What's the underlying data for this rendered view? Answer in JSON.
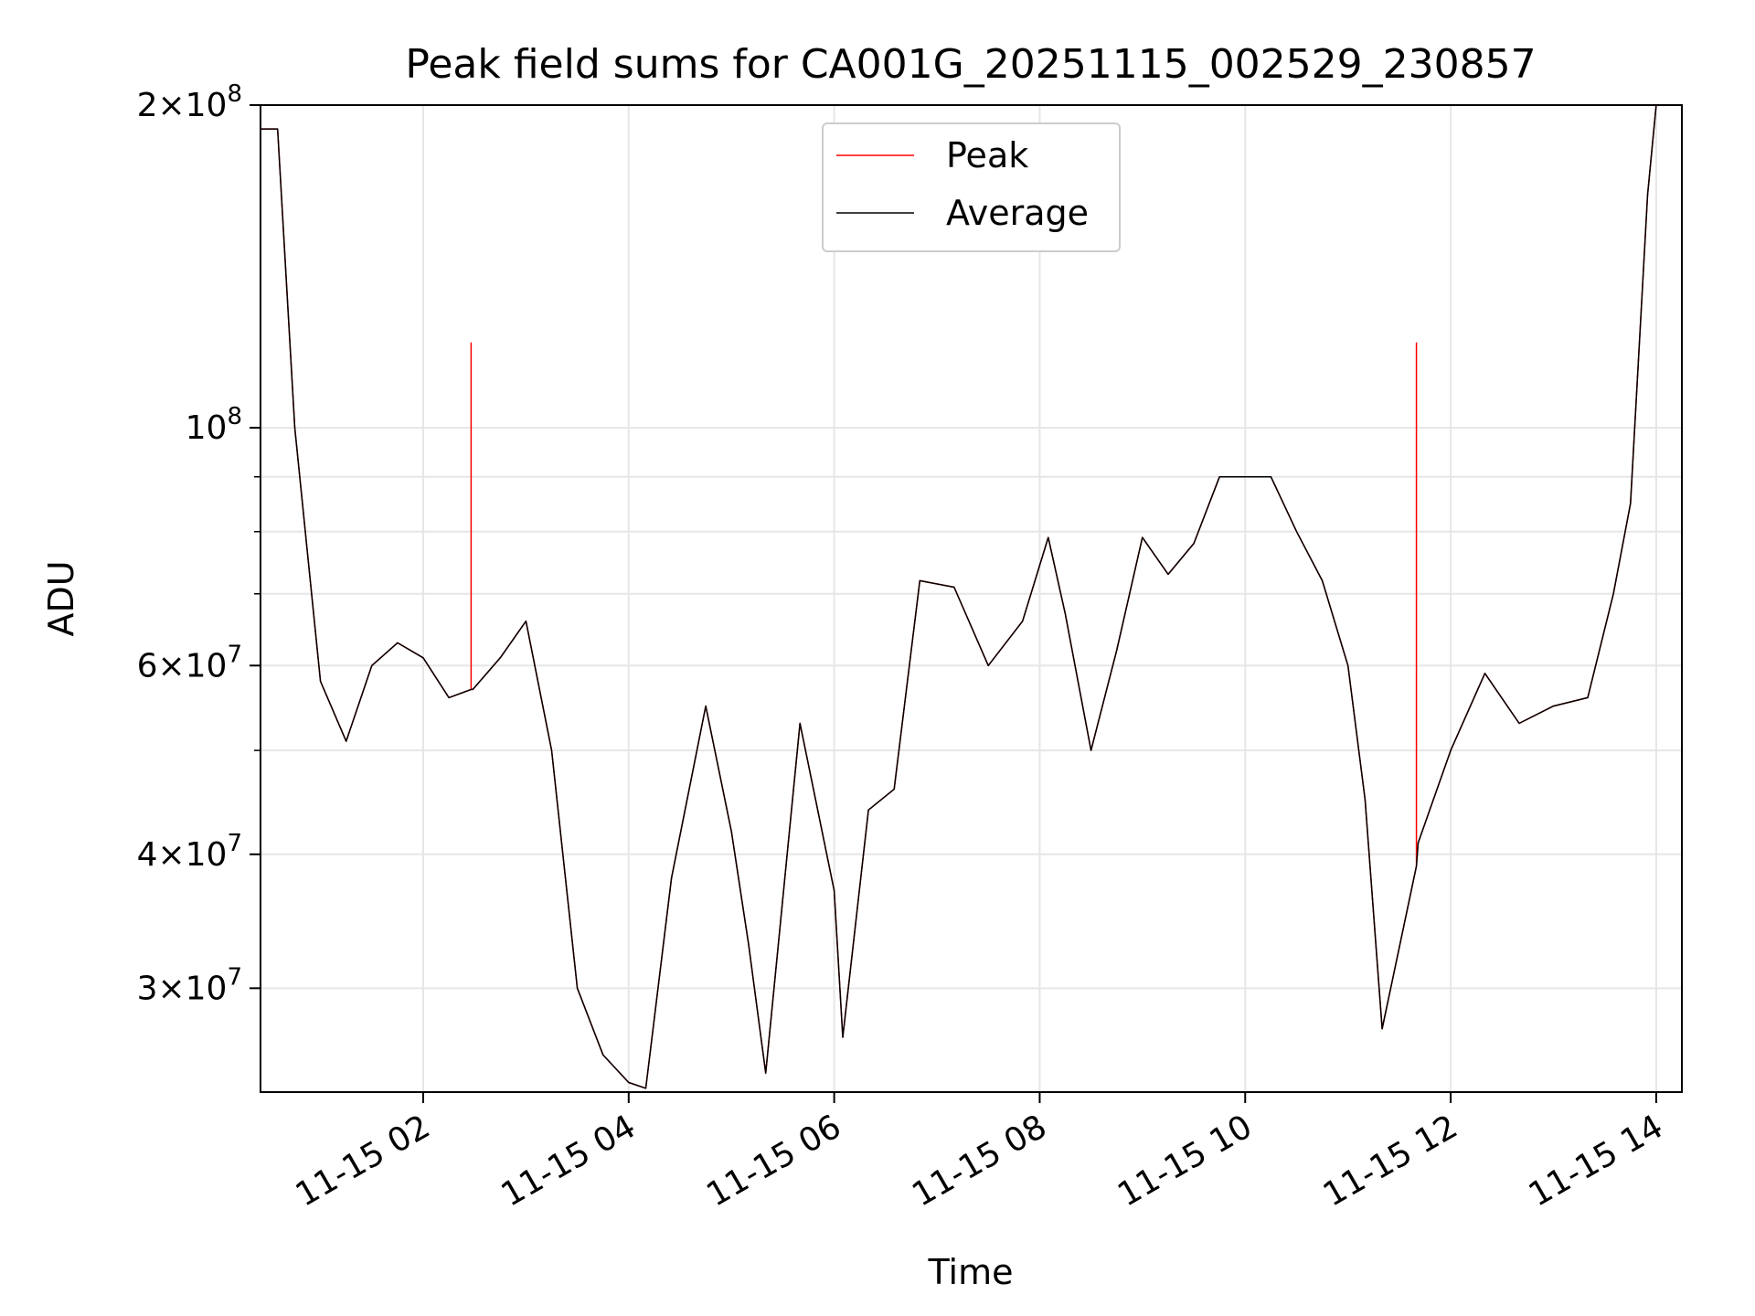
{
  "chart_data": {
    "type": "line",
    "title": "Peak field sums for CA001G_20251115_002529_230857",
    "xlabel": "Time",
    "ylabel": "ADU",
    "yscale": "log",
    "xlim": [
      "2025-11-15T00:25",
      "2025-11-15T14:15"
    ],
    "ylim": [
      24000000,
      200000000
    ],
    "grid": true,
    "legend_position": "upper center",
    "x_ticks": [
      {
        "t": "2025-11-15T02:00",
        "label": "11-15 02"
      },
      {
        "t": "2025-11-15T04:00",
        "label": "11-15 04"
      },
      {
        "t": "2025-11-15T06:00",
        "label": "11-15 06"
      },
      {
        "t": "2025-11-15T08:00",
        "label": "11-15 08"
      },
      {
        "t": "2025-11-15T10:00",
        "label": "11-15 10"
      },
      {
        "t": "2025-11-15T12:00",
        "label": "11-15 12"
      },
      {
        "t": "2025-11-15T14:00",
        "label": "11-15 14"
      }
    ],
    "y_ticks": [
      {
        "value": 30000000,
        "mantissa": "3",
        "exp": "7"
      },
      {
        "value": 40000000,
        "mantissa": "4",
        "exp": "7"
      },
      {
        "value": 60000000,
        "mantissa": "6",
        "exp": "7"
      },
      {
        "value": 100000000,
        "mantissa": "",
        "exp": "8"
      },
      {
        "value": 200000000,
        "mantissa": "2",
        "exp": "8"
      }
    ],
    "y_minor_ticks": [
      50000000,
      70000000,
      80000000,
      90000000
    ],
    "series": [
      {
        "name": "Peak",
        "color": "#ff0000",
        "x": [
          "2025-11-15T00:25",
          "2025-11-15T00:35",
          "2025-11-15T00:45",
          "2025-11-15T01:00",
          "2025-11-15T01:15",
          "2025-11-15T01:30",
          "2025-11-15T01:45",
          "2025-11-15T02:00",
          "2025-11-15T02:15",
          "2025-11-15T02:28",
          "2025-11-15T02:28",
          "2025-11-15T02:28",
          "2025-11-15T02:29",
          "2025-11-15T02:45",
          "2025-11-15T03:00",
          "2025-11-15T03:15",
          "2025-11-15T03:30",
          "2025-11-15T03:45",
          "2025-11-15T04:00",
          "2025-11-15T04:10",
          "2025-11-15T04:25",
          "2025-11-15T04:45",
          "2025-11-15T05:00",
          "2025-11-15T05:10",
          "2025-11-15T05:20",
          "2025-11-15T05:40",
          "2025-11-15T06:00",
          "2025-11-15T06:05",
          "2025-11-15T06:20",
          "2025-11-15T06:35",
          "2025-11-15T06:50",
          "2025-11-15T07:10",
          "2025-11-15T07:30",
          "2025-11-15T07:50",
          "2025-11-15T08:05",
          "2025-11-15T08:15",
          "2025-11-15T08:30",
          "2025-11-15T08:45",
          "2025-11-15T09:00",
          "2025-11-15T09:15",
          "2025-11-15T09:30",
          "2025-11-15T09:45",
          "2025-11-15T10:00",
          "2025-11-15T10:15",
          "2025-11-15T10:30",
          "2025-11-15T10:45",
          "2025-11-15T11:00",
          "2025-11-15T11:10",
          "2025-11-15T11:20",
          "2025-11-15T11:40",
          "2025-11-15T11:40",
          "2025-11-15T11:40",
          "2025-11-15T11:41",
          "2025-11-15T12:00",
          "2025-11-15T12:20",
          "2025-11-15T12:40",
          "2025-11-15T13:00",
          "2025-11-15T13:20",
          "2025-11-15T13:35",
          "2025-11-15T13:45",
          "2025-11-15T13:55",
          "2025-11-15T14:00"
        ],
        "values": [
          190000000,
          190000000,
          100000000,
          58000000,
          51000000,
          60000000,
          63000000,
          61000000,
          56000000,
          57000000,
          120000000,
          57000000,
          57000000,
          61000000,
          66000000,
          50000000,
          30000000,
          26000000,
          24500000,
          24200000,
          38000000,
          55000000,
          42000000,
          33000000,
          25000000,
          53000000,
          37000000,
          27000000,
          44000000,
          46000000,
          72000000,
          71000000,
          60000000,
          66000000,
          79000000,
          67000000,
          50000000,
          62000000,
          79000000,
          73000000,
          78000000,
          90000000,
          90000000,
          90000000,
          80000000,
          72000000,
          60000000,
          45000000,
          27500000,
          39000000,
          120000000,
          39000000,
          41000000,
          50000000,
          59000000,
          53000000,
          55000000,
          56000000,
          70000000,
          85000000,
          165000000,
          200000000
        ]
      },
      {
        "name": "Average",
        "color": "#000000",
        "x": [
          "2025-11-15T00:25",
          "2025-11-15T00:35",
          "2025-11-15T00:45",
          "2025-11-15T01:00",
          "2025-11-15T01:15",
          "2025-11-15T01:30",
          "2025-11-15T01:45",
          "2025-11-15T02:00",
          "2025-11-15T02:15",
          "2025-11-15T02:28",
          "2025-11-15T02:29",
          "2025-11-15T02:45",
          "2025-11-15T03:00",
          "2025-11-15T03:15",
          "2025-11-15T03:30",
          "2025-11-15T03:45",
          "2025-11-15T04:00",
          "2025-11-15T04:10",
          "2025-11-15T04:25",
          "2025-11-15T04:45",
          "2025-11-15T05:00",
          "2025-11-15T05:10",
          "2025-11-15T05:20",
          "2025-11-15T05:40",
          "2025-11-15T06:00",
          "2025-11-15T06:05",
          "2025-11-15T06:20",
          "2025-11-15T06:35",
          "2025-11-15T06:50",
          "2025-11-15T07:10",
          "2025-11-15T07:30",
          "2025-11-15T07:50",
          "2025-11-15T08:05",
          "2025-11-15T08:15",
          "2025-11-15T08:30",
          "2025-11-15T08:45",
          "2025-11-15T09:00",
          "2025-11-15T09:15",
          "2025-11-15T09:30",
          "2025-11-15T09:45",
          "2025-11-15T10:00",
          "2025-11-15T10:15",
          "2025-11-15T10:30",
          "2025-11-15T10:45",
          "2025-11-15T11:00",
          "2025-11-15T11:10",
          "2025-11-15T11:20",
          "2025-11-15T11:40",
          "2025-11-15T11:41",
          "2025-11-15T12:00",
          "2025-11-15T12:20",
          "2025-11-15T12:40",
          "2025-11-15T13:00",
          "2025-11-15T13:20",
          "2025-11-15T13:35",
          "2025-11-15T13:45",
          "2025-11-15T13:55",
          "2025-11-15T14:00"
        ],
        "values": [
          190000000,
          190000000,
          100000000,
          58000000,
          51000000,
          60000000,
          63000000,
          61000000,
          56000000,
          57000000,
          57000000,
          61000000,
          66000000,
          50000000,
          30000000,
          26000000,
          24500000,
          24200000,
          38000000,
          55000000,
          42000000,
          33000000,
          25000000,
          53000000,
          37000000,
          27000000,
          44000000,
          46000000,
          72000000,
          71000000,
          60000000,
          66000000,
          79000000,
          67000000,
          50000000,
          62000000,
          79000000,
          73000000,
          78000000,
          90000000,
          90000000,
          90000000,
          80000000,
          72000000,
          60000000,
          45000000,
          27500000,
          39000000,
          41000000,
          50000000,
          59000000,
          53000000,
          55000000,
          56000000,
          70000000,
          85000000,
          165000000,
          200000000
        ]
      }
    ]
  }
}
